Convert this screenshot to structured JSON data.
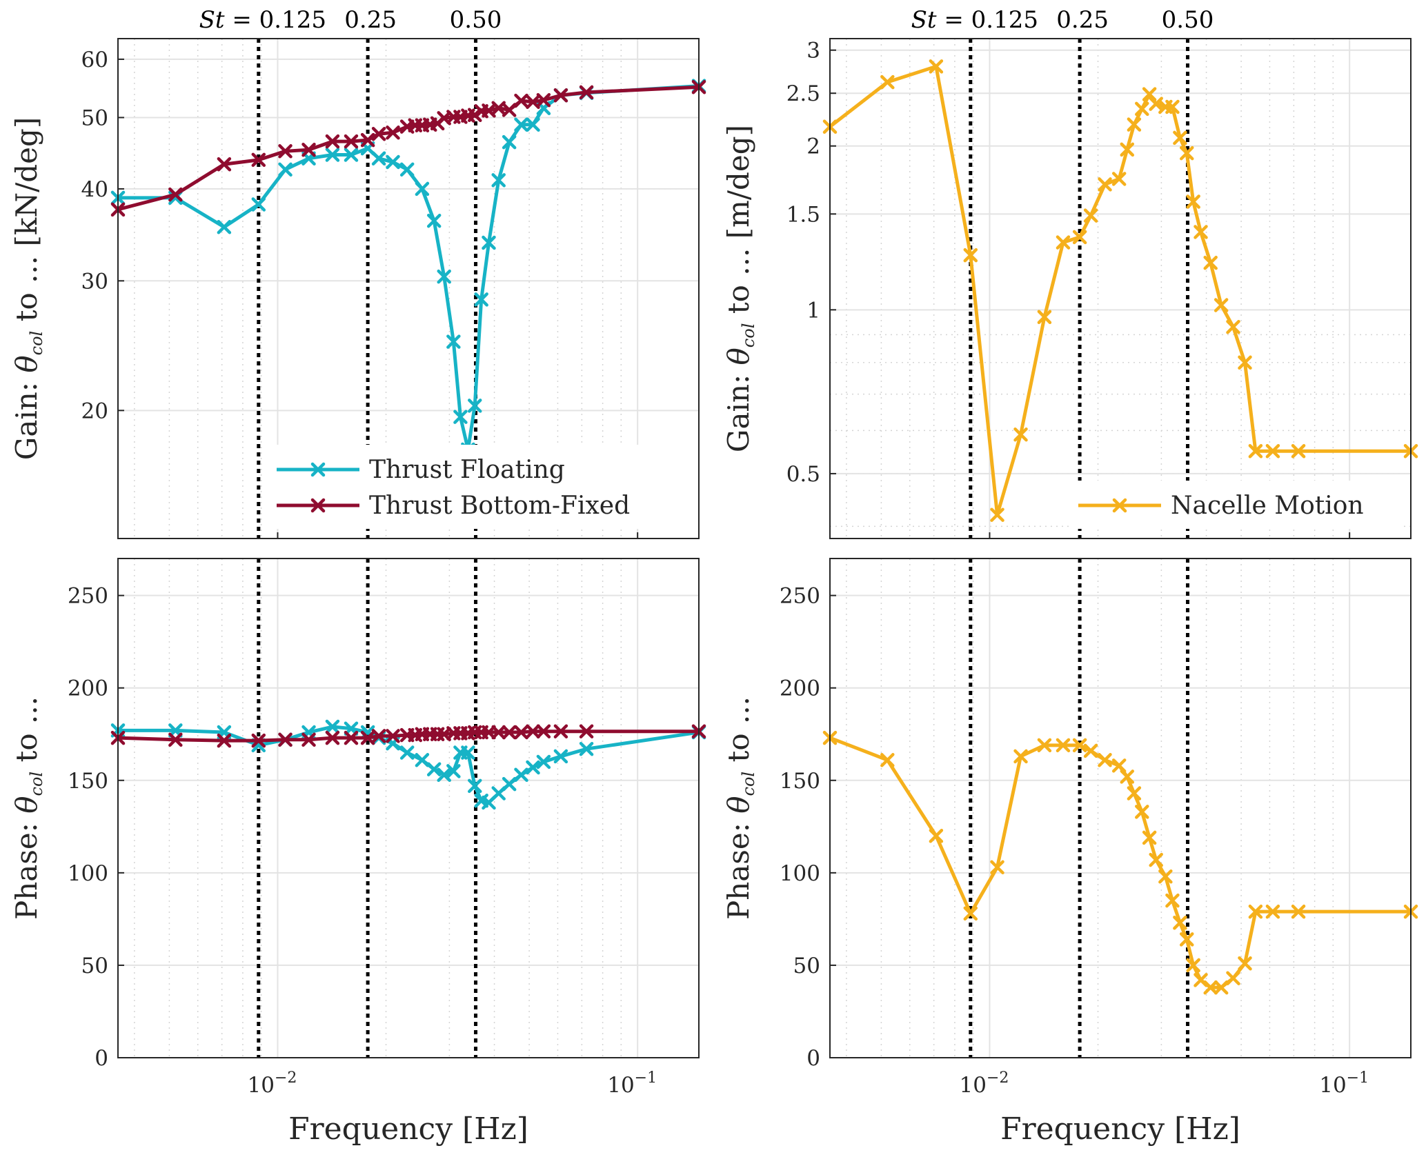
{
  "chart_data": [
    {
      "type": "line",
      "panel": "top-left",
      "xscale": "log",
      "yscale": "log",
      "xlim": [
        0.0036,
        0.148
      ],
      "ylim": [
        13.4,
        64
      ],
      "ylabel_prefix": "Gain: ",
      "ylabel_sym": "θ",
      "ylabel_sub": "col",
      "ylabel_suffix": " to ...  [kN/deg]",
      "yticks": [
        20,
        30,
        40,
        50,
        60
      ],
      "xticks": [
        0.01,
        0.1
      ],
      "xticklabels": [
        "10",
        "10"
      ],
      "xtick_exponents": [
        "−2",
        "−1"
      ],
      "grid": true,
      "vlines": [
        0.00885,
        0.0178,
        0.0355
      ],
      "st_label_parts": [
        "St",
        " = 0.125",
        "0.25",
        "0.50"
      ],
      "legend": "bottom-right",
      "series": [
        {
          "name": "Thrust Floating",
          "color": "#17B3C6",
          "x": [
            0.0036,
            0.0052,
            0.0071,
            0.00885,
            0.0105,
            0.0122,
            0.0142,
            0.016,
            0.0178,
            0.0191,
            0.0209,
            0.0229,
            0.0252,
            0.0272,
            0.029,
            0.0308,
            0.0322,
            0.0338,
            0.0353,
            0.0368,
            0.0386,
            0.0411,
            0.044,
            0.0475,
            0.0512,
            0.0548,
            0.0612,
            0.0721,
            0.148
          ],
          "y": [
            38.9,
            38.9,
            35.5,
            38.1,
            42.5,
            44.0,
            44.5,
            44.5,
            45.4,
            44.0,
            43.5,
            42.5,
            40.0,
            36.2,
            30.4,
            24.8,
            19.6,
            17.7,
            20.3,
            28.3,
            33.8,
            41.1,
            46.3,
            48.9,
            48.9,
            51.5,
            53.6,
            54.0,
            55.2
          ]
        },
        {
          "name": "Thrust Bottom-Fixed",
          "color": "#8F0C2F",
          "x": [
            0.0036,
            0.0052,
            0.0071,
            0.00885,
            0.0105,
            0.0122,
            0.0142,
            0.016,
            0.0178,
            0.0191,
            0.0209,
            0.0229,
            0.0241,
            0.0252,
            0.0265,
            0.0278,
            0.029,
            0.0308,
            0.0322,
            0.0338,
            0.0353,
            0.0368,
            0.0386,
            0.0411,
            0.044,
            0.0475,
            0.0512,
            0.0548,
            0.0612,
            0.0721,
            0.148
          ],
          "y": [
            37.5,
            39.3,
            43.2,
            43.8,
            45.0,
            45.2,
            46.4,
            46.4,
            46.6,
            47.5,
            47.7,
            48.6,
            48.8,
            48.8,
            48.9,
            49.1,
            49.9,
            50.1,
            50.1,
            50.3,
            50.4,
            51.0,
            51.1,
            51.5,
            51.2,
            52.7,
            52.5,
            52.8,
            53.6,
            54.1,
            55.0
          ]
        }
      ]
    },
    {
      "type": "line",
      "panel": "top-right",
      "xscale": "log",
      "yscale": "log",
      "xlim": [
        0.0036,
        0.148
      ],
      "ylim": [
        0.38,
        3.15
      ],
      "ylabel_prefix": "Gain: ",
      "ylabel_sym": "θ",
      "ylabel_sub": "col",
      "ylabel_suffix": " to ...  [m/deg]",
      "yticks": [
        0.5,
        1,
        1.5,
        2,
        2.5,
        3
      ],
      "ytick_labels": [
        "0.5",
        "1",
        "1.5",
        "2",
        "2.5",
        "3"
      ],
      "xticks": [
        0.01,
        0.1
      ],
      "xticklabels": [
        "10",
        "10"
      ],
      "xtick_exponents": [
        "−2",
        "−1"
      ],
      "grid": true,
      "vlines": [
        0.00885,
        0.0178,
        0.0355
      ],
      "st_label_parts": [
        "St",
        " = 0.125",
        "0.25",
        "0.50"
      ],
      "legend": "bottom-right",
      "series": [
        {
          "name": "Nacelle Motion",
          "color": "#F5B01C",
          "x": [
            0.0036,
            0.0052,
            0.0071,
            0.00885,
            0.0105,
            0.0122,
            0.0142,
            0.016,
            0.0178,
            0.0191,
            0.0209,
            0.0229,
            0.0241,
            0.0252,
            0.0265,
            0.0278,
            0.029,
            0.0308,
            0.0322,
            0.0338,
            0.0353,
            0.0368,
            0.0386,
            0.0411,
            0.044,
            0.0475,
            0.0512,
            0.0548,
            0.0612,
            0.0721,
            0.148
          ],
          "y": [
            2.17,
            2.62,
            2.8,
            1.26,
            0.42,
            0.59,
            0.97,
            1.33,
            1.36,
            1.49,
            1.7,
            1.74,
            1.97,
            2.19,
            2.34,
            2.49,
            2.39,
            2.36,
            2.36,
            2.07,
            1.94,
            1.58,
            1.39,
            1.22,
            1.02,
            0.93,
            0.8,
            0.55,
            0.55,
            0.55,
            0.55
          ]
        }
      ]
    },
    {
      "type": "line",
      "panel": "bottom-left",
      "xscale": "log",
      "yscale": "linear",
      "xlim": [
        0.0036,
        0.148
      ],
      "ylim": [
        0,
        270
      ],
      "ylabel_prefix": "Phase: ",
      "ylabel_sym": "θ",
      "ylabel_sub": "col",
      "ylabel_suffix": " to ...",
      "yticks": [
        0,
        50,
        100,
        150,
        200,
        250
      ],
      "xticks": [
        0.01,
        0.1
      ],
      "xticklabels": [
        "10",
        "10"
      ],
      "xtick_exponents": [
        "−2",
        "−1"
      ],
      "xlabel": "Frequency [Hz]",
      "grid": true,
      "vlines": [
        0.00885,
        0.0178,
        0.0355
      ],
      "series": [
        {
          "name": "Thrust Floating",
          "color": "#17B3C6",
          "x": [
            0.0036,
            0.0052,
            0.0071,
            0.00885,
            0.0105,
            0.0122,
            0.0142,
            0.016,
            0.0178,
            0.0191,
            0.0209,
            0.0229,
            0.0252,
            0.0272,
            0.029,
            0.0308,
            0.0322,
            0.0338,
            0.0353,
            0.0368,
            0.0386,
            0.0411,
            0.044,
            0.0475,
            0.0512,
            0.0548,
            0.0612,
            0.0721,
            0.148
          ],
          "y": [
            177,
            177,
            176,
            169,
            172,
            176,
            179,
            178,
            176,
            173,
            170,
            165,
            161,
            156,
            153,
            155,
            165,
            165,
            147,
            139,
            138,
            143,
            148,
            153,
            157,
            160,
            163,
            167,
            176
          ]
        },
        {
          "name": "Thrust Bottom-Fixed",
          "color": "#8F0C2F",
          "x": [
            0.0036,
            0.0052,
            0.0071,
            0.00885,
            0.0105,
            0.0122,
            0.0142,
            0.016,
            0.0178,
            0.0191,
            0.0209,
            0.0229,
            0.0241,
            0.0252,
            0.0265,
            0.0278,
            0.029,
            0.0308,
            0.0322,
            0.0338,
            0.0353,
            0.0368,
            0.0386,
            0.0411,
            0.044,
            0.0475,
            0.0512,
            0.0548,
            0.0612,
            0.0721,
            0.148
          ],
          "y": [
            173,
            172,
            171.5,
            171.5,
            172,
            172,
            173,
            173,
            173,
            174,
            174,
            174.5,
            174.5,
            175,
            175,
            175,
            175,
            175.5,
            175.5,
            175.5,
            176,
            176,
            176,
            176,
            176,
            176,
            176.5,
            176.5,
            176.5,
            176.5,
            176.5
          ]
        }
      ]
    },
    {
      "type": "line",
      "panel": "bottom-right",
      "xscale": "log",
      "yscale": "linear",
      "xlim": [
        0.0036,
        0.148
      ],
      "ylim": [
        0,
        270
      ],
      "ylabel_prefix": "Phase: ",
      "ylabel_sym": "θ",
      "ylabel_sub": "col",
      "ylabel_suffix": " to ...",
      "yticks": [
        0,
        50,
        100,
        150,
        200,
        250
      ],
      "xticks": [
        0.01,
        0.1
      ],
      "xticklabels": [
        "10",
        "10"
      ],
      "xtick_exponents": [
        "−2",
        "−1"
      ],
      "xlabel": "Frequency [Hz]",
      "grid": true,
      "vlines": [
        0.00885,
        0.0178,
        0.0355
      ],
      "series": [
        {
          "name": "Nacelle Motion",
          "color": "#F5B01C",
          "x": [
            0.0036,
            0.0052,
            0.0071,
            0.00885,
            0.0105,
            0.0122,
            0.0142,
            0.016,
            0.0178,
            0.0191,
            0.0209,
            0.0229,
            0.0241,
            0.0252,
            0.0265,
            0.0278,
            0.029,
            0.0308,
            0.0322,
            0.0338,
            0.0353,
            0.0368,
            0.0386,
            0.0411,
            0.044,
            0.0475,
            0.0512,
            0.0548,
            0.0612,
            0.0721,
            0.148
          ],
          "y": [
            173,
            161,
            120,
            78,
            103,
            163,
            169,
            169,
            169,
            166,
            161,
            158,
            152,
            143,
            133,
            119,
            107,
            98,
            85,
            73,
            64,
            50,
            42,
            38,
            38,
            43,
            51,
            79,
            79,
            79,
            79
          ]
        }
      ]
    }
  ]
}
